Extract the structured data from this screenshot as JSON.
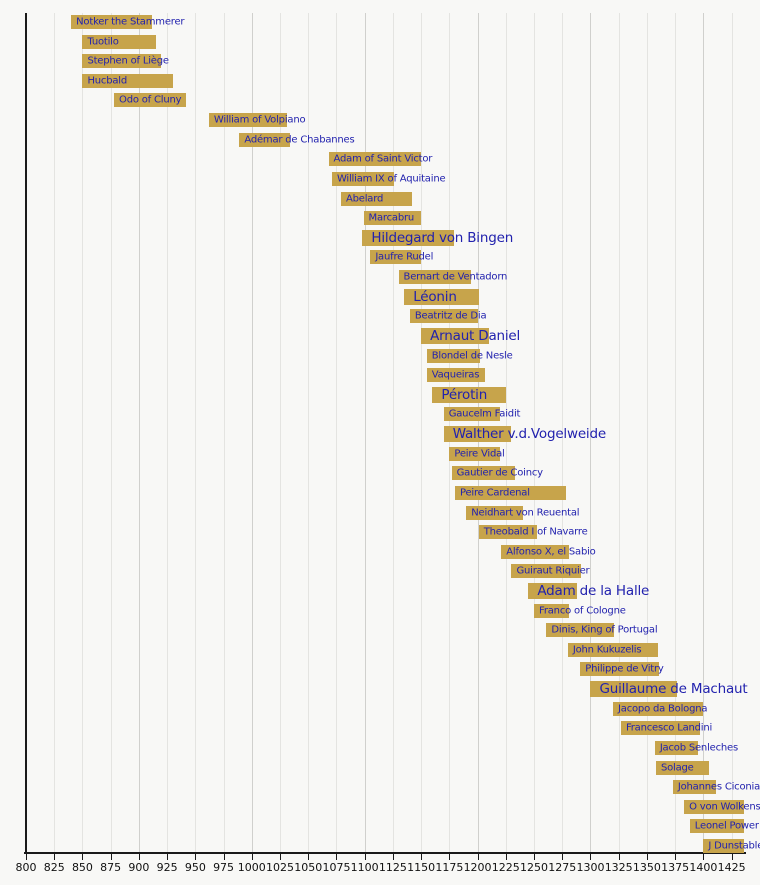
{
  "chart_data": {
    "type": "bar",
    "variant": "horizontal-lifespan-timeline",
    "title": "",
    "xlabel": "",
    "ylabel": "",
    "legend": "none",
    "grid": "vertical-on",
    "xlim": [
      800,
      1436
    ],
    "xticks": [
      800,
      825,
      850,
      875,
      900,
      925,
      950,
      975,
      1000,
      1025,
      1050,
      1075,
      1100,
      1125,
      1150,
      1175,
      1200,
      1225,
      1250,
      1275,
      1300,
      1325,
      1350,
      1375,
      1400,
      1425
    ],
    "bars": [
      {
        "name": "Notker the Stammerer",
        "start": 840,
        "end": 912,
        "major": false
      },
      {
        "name": "Tuotilo",
        "start": 850,
        "end": 915,
        "major": false
      },
      {
        "name": "Stephen of Liège",
        "start": 850,
        "end": 920,
        "major": false
      },
      {
        "name": "Hucbald",
        "start": 850,
        "end": 930,
        "major": false
      },
      {
        "name": "Odo of Cluny",
        "start": 878,
        "end": 942,
        "major": false
      },
      {
        "name": "William of Volpiano",
        "start": 962,
        "end": 1031,
        "major": false
      },
      {
        "name": "Adémar de Chabannes",
        "start": 989,
        "end": 1034,
        "major": false
      },
      {
        "name": "Adam of Saint Victor",
        "start": 1068,
        "end": 1150,
        "major": false
      },
      {
        "name": "William IX of Aquitaine",
        "start": 1071,
        "end": 1126,
        "major": false
      },
      {
        "name": "Abelard",
        "start": 1079,
        "end": 1142,
        "major": false
      },
      {
        "name": "Marcabru",
        "start": 1099,
        "end": 1150,
        "major": false
      },
      {
        "name": "Hildegard von Bingen",
        "start": 1098,
        "end": 1179,
        "major": true
      },
      {
        "name": "Jaufre Rudel",
        "start": 1105,
        "end": 1150,
        "major": false
      },
      {
        "name": "Bernart de Ventadorn",
        "start": 1130,
        "end": 1194,
        "major": false
      },
      {
        "name": "Léonin",
        "start": 1135,
        "end": 1201,
        "major": true
      },
      {
        "name": "Beatritz de Dia",
        "start": 1140,
        "end": 1200,
        "major": false
      },
      {
        "name": "Arnaut Daniel",
        "start": 1150,
        "end": 1210,
        "major": true
      },
      {
        "name": "Blondel de Nesle",
        "start": 1155,
        "end": 1202,
        "major": false
      },
      {
        "name": "Vaqueiras",
        "start": 1155,
        "end": 1207,
        "major": false
      },
      {
        "name": "Pérotin",
        "start": 1160,
        "end": 1225,
        "major": true
      },
      {
        "name": "Gaucelm Faidit",
        "start": 1170,
        "end": 1220,
        "major": false
      },
      {
        "name": "Walther v.d.Vogelweide",
        "start": 1170,
        "end": 1230,
        "major": true
      },
      {
        "name": "Peire Vidal",
        "start": 1175,
        "end": 1220,
        "major": false
      },
      {
        "name": "Gautier de Coincy",
        "start": 1177,
        "end": 1233,
        "major": false
      },
      {
        "name": "Peire Cardenal",
        "start": 1180,
        "end": 1278,
        "major": false
      },
      {
        "name": "Neidhart von Reuental",
        "start": 1190,
        "end": 1240,
        "major": false
      },
      {
        "name": "Theobald I of Navarre",
        "start": 1201,
        "end": 1253,
        "major": false
      },
      {
        "name": "Alfonso X, el Sabio",
        "start": 1221,
        "end": 1281,
        "major": false
      },
      {
        "name": "Guiraut Riquier",
        "start": 1230,
        "end": 1292,
        "major": false
      },
      {
        "name": "Adam de la Halle",
        "start": 1245,
        "end": 1288,
        "major": true
      },
      {
        "name": "Franco of Cologne",
        "start": 1250,
        "end": 1281,
        "major": false
      },
      {
        "name": "Dinis, King of Portugal",
        "start": 1261,
        "end": 1321,
        "major": false
      },
      {
        "name": "John Kukuzelis",
        "start": 1280,
        "end": 1360,
        "major": false
      },
      {
        "name": "Philippe de Vitry",
        "start": 1291,
        "end": 1361,
        "major": false
      },
      {
        "name": "Guillaume de Machaut",
        "start": 1300,
        "end": 1377,
        "major": true
      },
      {
        "name": "Jacopo da Bologna",
        "start": 1320,
        "end": 1400,
        "major": false
      },
      {
        "name": "Francesco Landini",
        "start": 1327,
        "end": 1397,
        "major": false
      },
      {
        "name": "Jacob Senleches",
        "start": 1357,
        "end": 1395,
        "major": false
      },
      {
        "name": "Solage",
        "start": 1358,
        "end": 1405,
        "major": false
      },
      {
        "name": "Johannes Ciconia",
        "start": 1373,
        "end": 1411,
        "major": false
      },
      {
        "name": "O von Wolkenstein",
        "start": 1383,
        "end": 1445,
        "major": false
      },
      {
        "name": "Leonel Power",
        "start": 1388,
        "end": 1445,
        "major": false
      },
      {
        "name": "J Dunstable",
        "start": 1400,
        "end": 1453,
        "major": false
      }
    ]
  },
  "colors": {
    "background": "#f8f8f6",
    "bar": "#c7a44b",
    "label": "#2222ae",
    "axis": "#1a1a1a",
    "gridline_minor": "#e4e4e1",
    "gridline_century": "#d0d0cd",
    "tick_label": "#111111"
  }
}
